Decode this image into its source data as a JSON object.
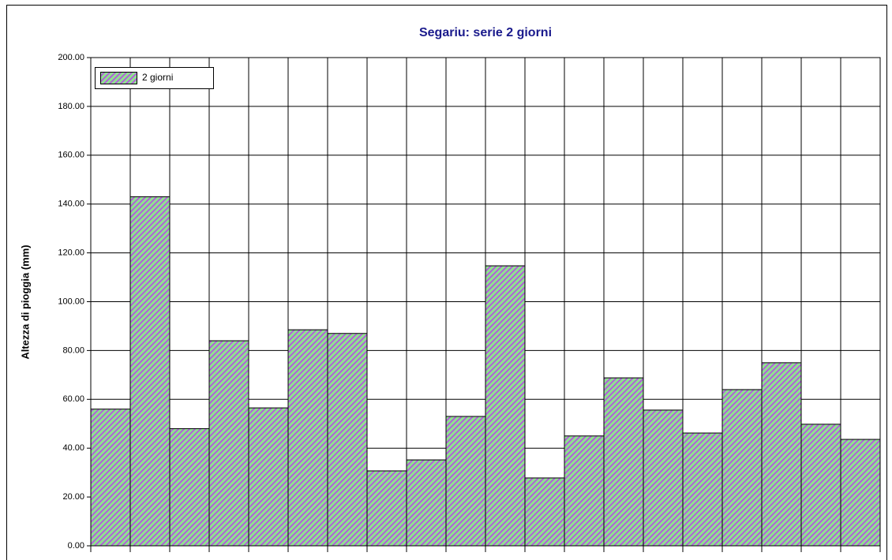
{
  "chart_data": {
    "type": "bar",
    "title": "Segariu: serie 2 giorni",
    "ylabel": "Altezza di pioggia (mm)",
    "categories": [
      null,
      null,
      null,
      null,
      null,
      null,
      null,
      null,
      null,
      null,
      null,
      null,
      null,
      null,
      null,
      null,
      null,
      null,
      null,
      null
    ],
    "series": [
      {
        "name": "2 giorni",
        "color": "#90e090",
        "hatch_color": "#b456e0",
        "values": [
          56,
          143,
          48,
          84,
          56.5,
          88.5,
          87,
          30.7,
          35.2,
          53,
          114.7,
          27.8,
          45,
          68.8,
          55.6,
          46.2,
          64,
          75,
          49.8,
          43.6
        ]
      }
    ],
    "ylim": [
      0,
      200
    ],
    "yticks": [
      {
        "value": 0,
        "label": "0.00"
      },
      {
        "value": 20,
        "label": "20.00"
      },
      {
        "value": 40,
        "label": "40.00"
      },
      {
        "value": 60,
        "label": "60.00"
      },
      {
        "value": 80,
        "label": "80.00"
      },
      {
        "value": 100,
        "label": "100.00"
      },
      {
        "value": 120,
        "label": "120.00"
      },
      {
        "value": 140,
        "label": "140.00"
      },
      {
        "value": 160,
        "label": "160.00"
      },
      {
        "value": 180,
        "label": "180.00"
      },
      {
        "value": 200,
        "label": "200.00"
      }
    ],
    "grid": true,
    "legend": "upper left"
  }
}
